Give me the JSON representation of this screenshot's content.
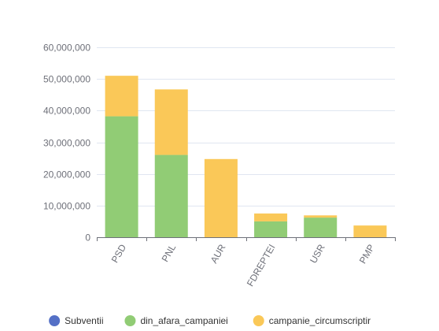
{
  "chart_data": {
    "type": "bar",
    "stacked": true,
    "categories": [
      "PSD",
      "PNL",
      "AUR",
      "FDREPTEI",
      "USR",
      "PMP"
    ],
    "series": [
      {
        "name": "Subventii",
        "color": "#5470c6",
        "values": [
          0,
          0,
          0,
          0,
          0,
          0
        ]
      },
      {
        "name": "din_afara_campaniei",
        "color": "#91cc75",
        "values": [
          38200000,
          26000000,
          0,
          5000000,
          6200000,
          0
        ]
      },
      {
        "name": "campanie_circumscriptir",
        "color": "#fac858",
        "values": [
          12800000,
          20700000,
          24700000,
          2500000,
          700000,
          3700000
        ]
      }
    ],
    "yticks": [
      "0",
      "10,000,000",
      "20,000,000",
      "30,000,000",
      "40,000,000",
      "50,000,000",
      "60,000,000"
    ],
    "ylim": [
      0,
      60000000
    ],
    "grid": true,
    "legend_position": "bottom"
  }
}
